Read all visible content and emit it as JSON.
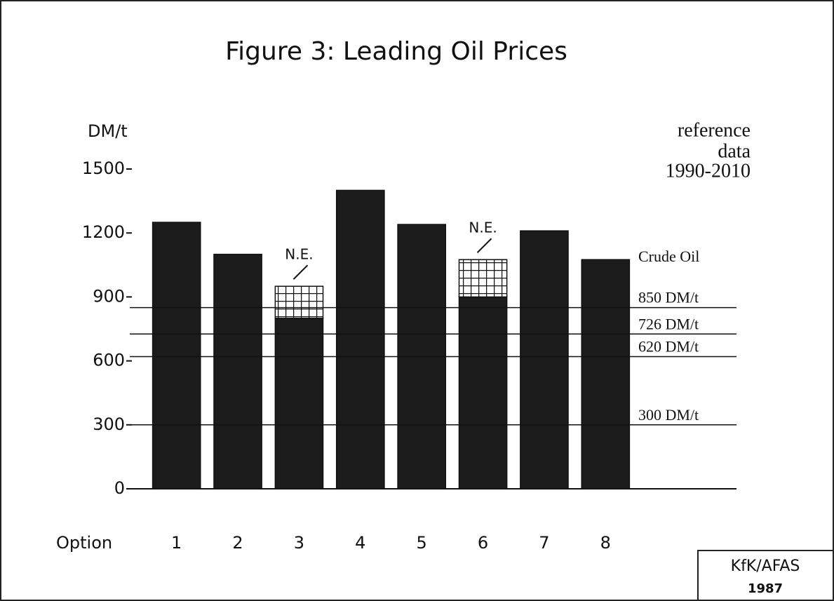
{
  "chart_data": {
    "type": "bar",
    "title": "Figure 3: Leading Oil Prices",
    "y_label": "DM/t",
    "x_label": "Option",
    "categories": [
      "1",
      "2",
      "3",
      "4",
      "5",
      "6",
      "7",
      "8"
    ],
    "series": [
      {
        "color": "#1c1c1c",
        "values": [
          1250,
          1100,
          800,
          1400,
          1240,
          900,
          1210,
          1075
        ]
      },
      {
        "name": "N.E.",
        "color": "hatch",
        "values": [
          null,
          null,
          150,
          null,
          null,
          175,
          null,
          null
        ]
      }
    ],
    "ylim": [
      0,
      1500
    ],
    "yticks": [
      0,
      300,
      600,
      900,
      1200,
      1500
    ],
    "reference_title": "Crude Oil",
    "reference_lines": [
      {
        "value": 850,
        "label": "850 DM/t"
      },
      {
        "value": 726,
        "label": "726 DM/t"
      },
      {
        "value": 620,
        "label": "620 DM/t"
      },
      {
        "value": 300,
        "label": "300 DM/t"
      }
    ],
    "note": [
      "reference",
      "data",
      "1990-2010"
    ],
    "stamp": [
      "KfK/AFAS",
      "1987"
    ]
  }
}
